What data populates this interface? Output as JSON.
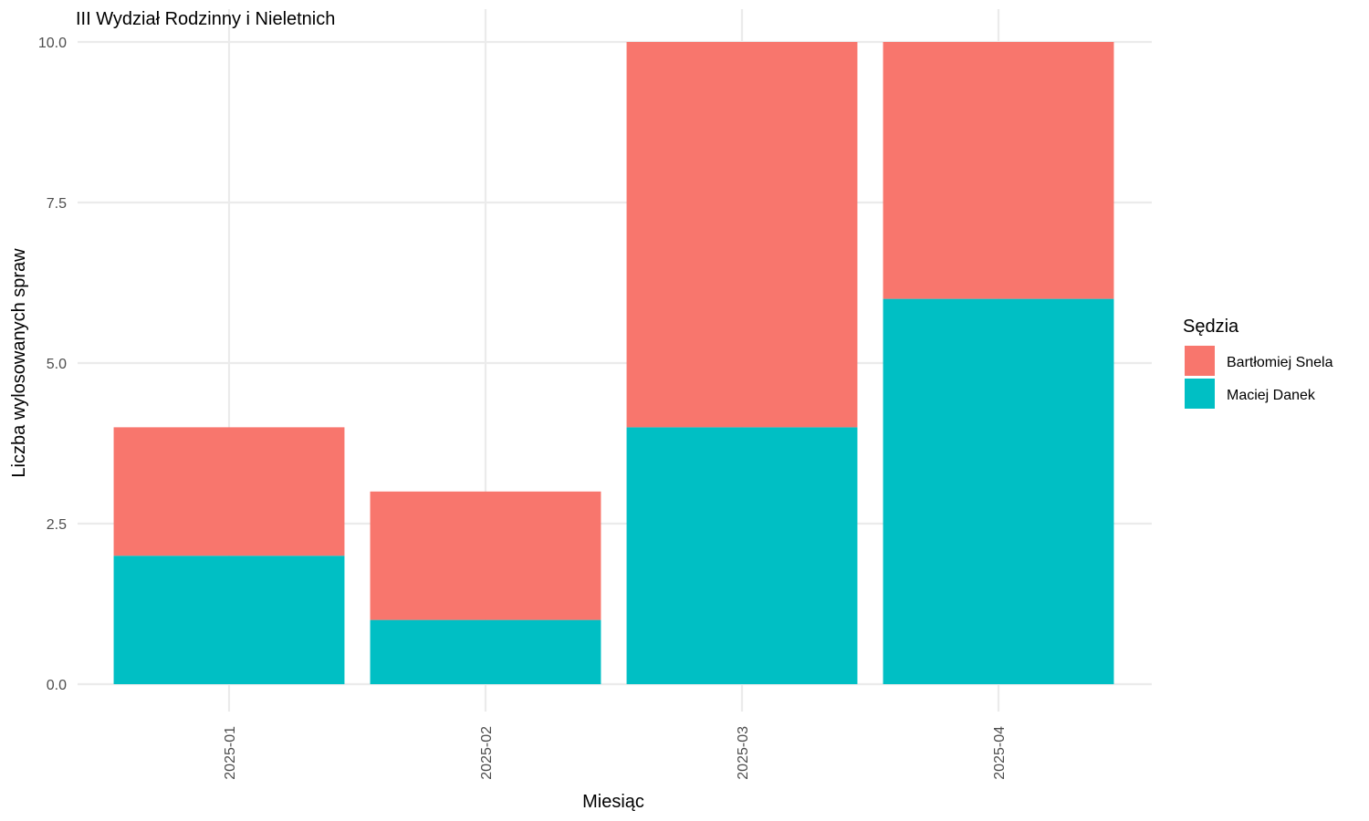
{
  "chart_data": {
    "type": "bar",
    "stacked": true,
    "title": "III Wydział Rodzinny i Nieletnich",
    "xlabel": "Miesiąc",
    "ylabel": "Liczba wylosowanych spraw",
    "categories": [
      "2025-01",
      "2025-02",
      "2025-03",
      "2025-04"
    ],
    "ylim": [
      0,
      10
    ],
    "yticks": [
      0,
      2.5,
      5,
      7.5,
      10
    ],
    "ytick_labels": [
      "0.0",
      "2.5",
      "5.0",
      "7.5",
      "10.0"
    ],
    "grid": true,
    "legend_position": "right",
    "legend_title": "Sędzia",
    "series": [
      {
        "name": "Maciej Danek",
        "color": "#00BFC4",
        "values": [
          2,
          1,
          4,
          6
        ]
      },
      {
        "name": "Bartłomiej Snela",
        "color": "#F8766D",
        "values": [
          2,
          2,
          6,
          4
        ]
      }
    ],
    "legend_order": [
      "Bartłomiej Snela",
      "Maciej Danek"
    ]
  }
}
